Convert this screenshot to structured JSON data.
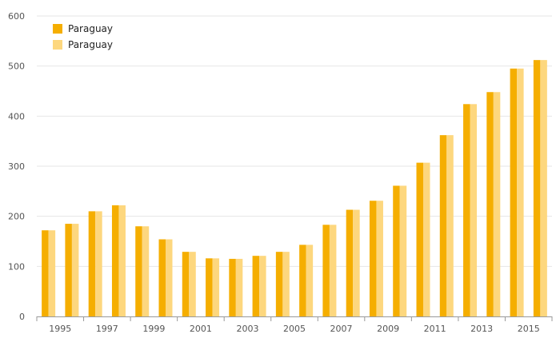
{
  "chart_data": {
    "type": "bar",
    "title": "",
    "xlabel": "",
    "ylabel": "",
    "ylim": [
      0,
      600
    ],
    "yticks": [
      0,
      100,
      200,
      300,
      400,
      500,
      600
    ],
    "grid": true,
    "legend_position": "top-left",
    "categories": [
      "1995",
      "1996",
      "1997",
      "1998",
      "1999",
      "2000",
      "2001",
      "2002",
      "2003",
      "2004",
      "2005",
      "2006",
      "2007",
      "2008",
      "2009",
      "2010",
      "2011",
      "2012",
      "2013",
      "2014",
      "2015",
      "2016"
    ],
    "xtick_labels": [
      "1995",
      "1997",
      "1999",
      "2001",
      "2003",
      "2005",
      "2007",
      "2009",
      "2011",
      "2013",
      "2015"
    ],
    "series": [
      {
        "name": "Paraguay",
        "color": "#f5ae00",
        "values": [
          172,
          185,
          210,
          222,
          180,
          154,
          129,
          116,
          115,
          121,
          129,
          143,
          183,
          213,
          231,
          261,
          307,
          362,
          424,
          448,
          495,
          512
        ]
      },
      {
        "name": "Paraguay",
        "color": "#fdd77e",
        "values": [
          172,
          185,
          210,
          222,
          180,
          154,
          129,
          116,
          115,
          121,
          129,
          143,
          183,
          213,
          231,
          261,
          307,
          362,
          424,
          448,
          495,
          512
        ]
      }
    ]
  }
}
